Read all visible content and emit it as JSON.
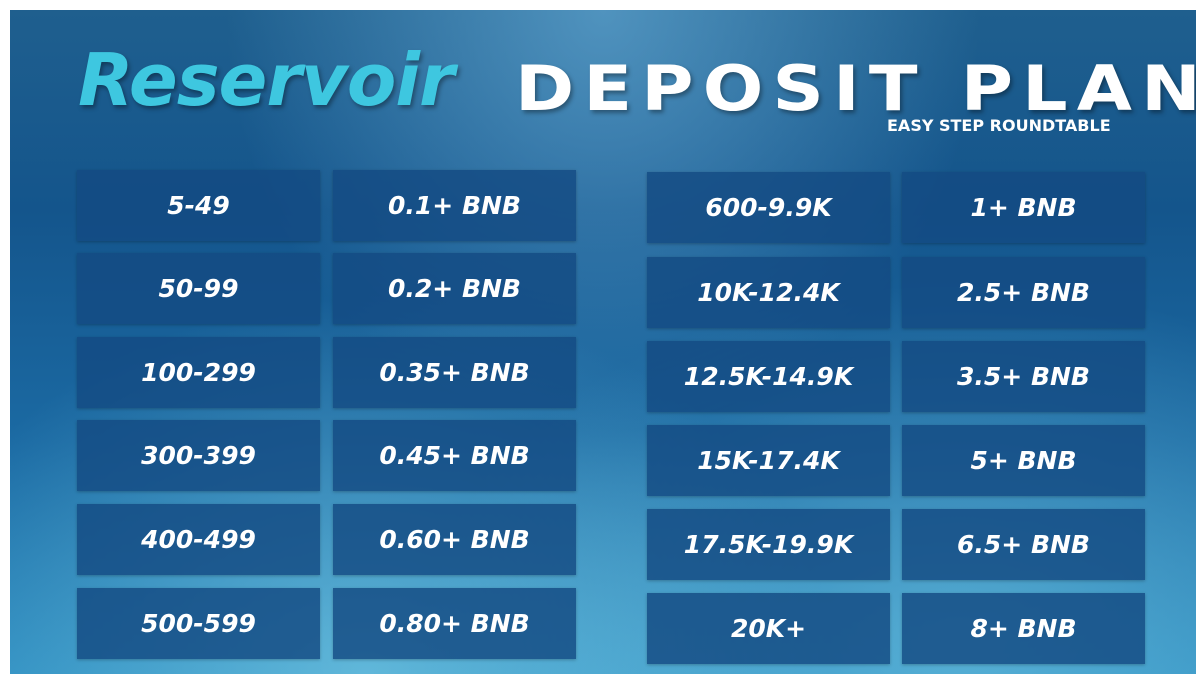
{
  "header": {
    "brand": "Reservoir",
    "title": "DEPOSIT PLAN",
    "subtitle": "EASY STEP ROUNDTABLE"
  },
  "tables": [
    {
      "rows": [
        [
          "5-49",
          "0.1+ BNB"
        ],
        [
          "50-99",
          "0.2+ BNB"
        ],
        [
          "100-299",
          "0.35+ BNB"
        ],
        [
          "300-399",
          "0.45+ BNB"
        ],
        [
          "400-499",
          "0.60+ BNB"
        ],
        [
          "500-599",
          "0.80+ BNB"
        ]
      ]
    },
    {
      "rows": [
        [
          "600-9.9K",
          "1+ BNB"
        ],
        [
          "10K-12.4K",
          "2.5+ BNB"
        ],
        [
          "12.5K-14.9K",
          "3.5+ BNB"
        ],
        [
          "15K-17.4K",
          "5+ BNB"
        ],
        [
          "17.5K-19.9K",
          "6.5+ BNB"
        ],
        [
          "20K+",
          "8+ BNB"
        ]
      ]
    }
  ]
}
